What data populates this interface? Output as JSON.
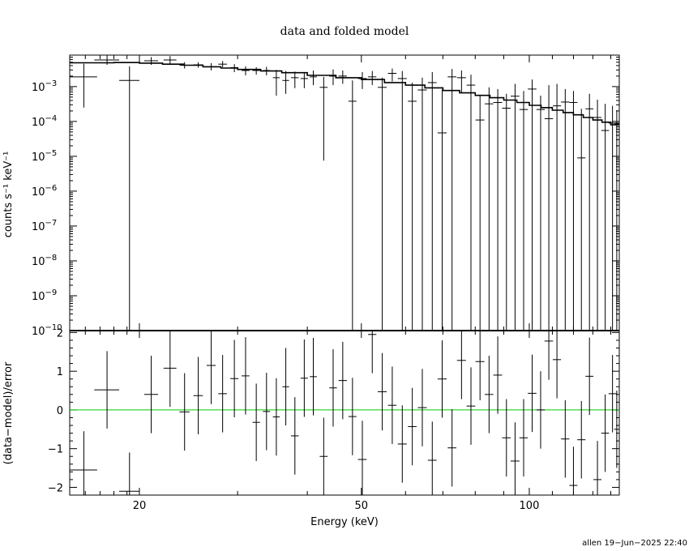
{
  "chart_data": [
    {
      "type": "scatter",
      "panel": "top",
      "title": "data and folded model",
      "xlabel": "Energy (keV)",
      "ylabel": "counts s⁻¹ keV⁻¹",
      "x_scale": "log",
      "y_scale": "log",
      "xlim": [
        15,
        145
      ],
      "ylim": [
        1e-10,
        0.008
      ],
      "x_ticks": [
        20,
        50,
        100
      ],
      "y_ticks": [
        {
          "value": 1e-10,
          "base": "10",
          "exp": "−10"
        },
        {
          "value": 1e-09,
          "base": "10",
          "exp": "−9"
        },
        {
          "value": 1e-08,
          "base": "10",
          "exp": "−8"
        },
        {
          "value": 1e-07,
          "base": "10",
          "exp": "−7"
        },
        {
          "value": 1e-06,
          "base": "10",
          "exp": "−6"
        },
        {
          "value": 1e-05,
          "base": "10",
          "exp": "−5"
        },
        {
          "value": 0.0001,
          "base": "10",
          "exp": "−4"
        },
        {
          "value": 0.001,
          "base": "10",
          "exp": "−3"
        }
      ],
      "series": [
        {
          "kind": "data",
          "color": "#000000",
          "points": [
            {
              "x": 15.9,
              "xerr": 0.9,
              "y": 0.0019,
              "ylo": 0.00025,
              "yhi": 0.0045
            },
            {
              "x": 17.5,
              "xerr": 0.9,
              "y": 0.0058,
              "ylo": 0.0042,
              "yhi": 0.0079
            },
            {
              "x": 19.2,
              "xerr": 0.8,
              "y": 0.0015,
              "ylo": 1e-10,
              "yhi": 0.0038
            },
            {
              "x": 21.0,
              "xerr": 0.6,
              "y": 0.0055,
              "ylo": 0.0042,
              "yhi": 0.007
            },
            {
              "x": 22.7,
              "xerr": 0.6,
              "y": 0.0058,
              "ylo": 0.0045,
              "yhi": 0.0075
            },
            {
              "x": 24.1,
              "xerr": 0.5,
              "y": 0.0041,
              "ylo": 0.0033,
              "yhi": 0.005
            },
            {
              "x": 25.5,
              "xerr": 0.5,
              "y": 0.0042,
              "ylo": 0.0035,
              "yhi": 0.005
            },
            {
              "x": 26.9,
              "xerr": 0.5,
              "y": 0.0037,
              "ylo": 0.0029,
              "yhi": 0.0047
            },
            {
              "x": 28.2,
              "xerr": 0.5,
              "y": 0.0044,
              "ylo": 0.0036,
              "yhi": 0.0054
            },
            {
              "x": 29.6,
              "xerr": 0.5,
              "y": 0.0035,
              "ylo": 0.0026,
              "yhi": 0.0044
            },
            {
              "x": 31.0,
              "xerr": 0.5,
              "y": 0.0029,
              "ylo": 0.0021,
              "yhi": 0.0038
            },
            {
              "x": 32.4,
              "xerr": 0.5,
              "y": 0.0029,
              "ylo": 0.0022,
              "yhi": 0.0036
            },
            {
              "x": 33.8,
              "xerr": 0.5,
              "y": 0.0029,
              "ylo": 0.0021,
              "yhi": 0.0037
            },
            {
              "x": 35.2,
              "xerr": 0.5,
              "y": 0.0018,
              "ylo": 0.00055,
              "yhi": 0.003
            },
            {
              "x": 36.6,
              "xerr": 0.5,
              "y": 0.0015,
              "ylo": 0.00062,
              "yhi": 0.0028
            },
            {
              "x": 38.0,
              "xerr": 0.6,
              "y": 0.0018,
              "ylo": 0.0009,
              "yhi": 0.0027
            },
            {
              "x": 39.5,
              "xerr": 0.6,
              "y": 0.0017,
              "ylo": 0.0009,
              "yhi": 0.0026
            },
            {
              "x": 41.0,
              "xerr": 0.6,
              "y": 0.0019,
              "ylo": 0.0011,
              "yhi": 0.0029
            },
            {
              "x": 42.8,
              "xerr": 0.7,
              "y": 0.00095,
              "ylo": 7.5e-06,
              "yhi": 0.0019
            },
            {
              "x": 44.5,
              "xerr": 0.7,
              "y": 0.002,
              "ylo": 0.0011,
              "yhi": 0.0031
            },
            {
              "x": 46.3,
              "xerr": 0.8,
              "y": 0.002,
              "ylo": 0.0012,
              "yhi": 0.0029
            },
            {
              "x": 48.2,
              "xerr": 0.8,
              "y": 0.00038,
              "ylo": 1e-10,
              "yhi": 0.0015
            },
            {
              "x": 50.2,
              "xerr": 0.9,
              "y": 0.0017,
              "ylo": 0.00085,
              "yhi": 0.0026
            },
            {
              "x": 52.3,
              "xerr": 0.9,
              "y": 0.0019,
              "ylo": 0.0011,
              "yhi": 0.0028
            },
            {
              "x": 54.5,
              "xerr": 1.0,
              "y": 0.00095,
              "ylo": 1e-10,
              "yhi": 0.0018
            },
            {
              "x": 56.8,
              "xerr": 1.0,
              "y": 0.0024,
              "ylo": 0.0014,
              "yhi": 0.0033
            },
            {
              "x": 59.2,
              "xerr": 1.1,
              "y": 0.0017,
              "ylo": 1e-10,
              "yhi": 0.0028
            },
            {
              "x": 61.7,
              "xerr": 1.1,
              "y": 0.00038,
              "ylo": 1e-10,
              "yhi": 0.0013
            },
            {
              "x": 64.3,
              "xerr": 1.2,
              "y": 0.0008,
              "ylo": 1e-10,
              "yhi": 0.0018
            },
            {
              "x": 67.0,
              "xerr": 1.2,
              "y": 0.0013,
              "ylo": 1e-10,
              "yhi": 0.0026
            },
            {
              "x": 69.8,
              "xerr": 1.3,
              "y": 4.7e-05,
              "ylo": 1e-10,
              "yhi": 0.00082
            },
            {
              "x": 72.7,
              "xerr": 1.3,
              "y": 0.0019,
              "ylo": 1e-10,
              "yhi": 0.0032
            },
            {
              "x": 75.6,
              "xerr": 1.4,
              "y": 0.0018,
              "ylo": 0.00065,
              "yhi": 0.0029
            },
            {
              "x": 78.6,
              "xerr": 1.4,
              "y": 0.0011,
              "ylo": 1e-10,
              "yhi": 0.0022
            },
            {
              "x": 81.6,
              "xerr": 1.5,
              "y": 0.00011,
              "ylo": 1e-10,
              "yhi": 0.00055
            },
            {
              "x": 84.7,
              "xerr": 1.5,
              "y": 0.00032,
              "ylo": 1e-10,
              "yhi": 0.00095
            },
            {
              "x": 87.8,
              "xerr": 1.6,
              "y": 0.00035,
              "ylo": 1e-10,
              "yhi": 0.00085
            },
            {
              "x": 91.0,
              "xerr": 1.6,
              "y": 0.00024,
              "ylo": 1e-10,
              "yhi": 0.00062
            },
            {
              "x": 94.3,
              "xerr": 1.7,
              "y": 0.00053,
              "ylo": 1e-10,
              "yhi": 0.0012
            },
            {
              "x": 97.7,
              "xerr": 1.7,
              "y": 0.00022,
              "ylo": 1e-10,
              "yhi": 0.00075
            },
            {
              "x": 101.2,
              "xerr": 1.8,
              "y": 0.00085,
              "ylo": 1e-10,
              "yhi": 0.0016
            },
            {
              "x": 104.8,
              "xerr": 1.8,
              "y": 0.00022,
              "ylo": 1e-10,
              "yhi": 0.00055
            },
            {
              "x": 108.4,
              "xerr": 1.9,
              "y": 0.00012,
              "ylo": 1e-10,
              "yhi": 0.0011
            },
            {
              "x": 112.1,
              "xerr": 1.9,
              "y": 0.00028,
              "ylo": 1e-10,
              "yhi": 0.0012
            },
            {
              "x": 116.0,
              "xerr": 2.0,
              "y": 0.00036,
              "ylo": 1e-10,
              "yhi": 0.00085
            },
            {
              "x": 120.0,
              "xerr": 2.0,
              "y": 0.00035,
              "ylo": 1e-10,
              "yhi": 0.00075
            },
            {
              "x": 124.0,
              "xerr": 2.1,
              "y": 9e-06,
              "ylo": 1e-10,
              "yhi": 0.00023
            },
            {
              "x": 128.2,
              "xerr": 2.1,
              "y": 0.00023,
              "ylo": 1e-10,
              "yhi": 0.00062
            },
            {
              "x": 132.5,
              "xerr": 2.2,
              "y": 0.00013,
              "ylo": 1e-10,
              "yhi": 0.00042
            },
            {
              "x": 136.8,
              "xerr": 2.2,
              "y": 5.5e-05,
              "ylo": 1e-10,
              "yhi": 0.00032
            },
            {
              "x": 141.0,
              "xerr": 2.3,
              "y": 9e-05,
              "ylo": 1e-10,
              "yhi": 0.00028
            },
            {
              "x": 143.5,
              "xerr": 1.5,
              "y": 8.5e-05,
              "ylo": 1e-10,
              "yhi": 0.00021
            }
          ]
        },
        {
          "kind": "model",
          "color": "#000000",
          "x": [
            15,
            18,
            20,
            22,
            24,
            26,
            28,
            30,
            33,
            36,
            40,
            45,
            50,
            55,
            60,
            65,
            70,
            75,
            80,
            85,
            90,
            95,
            100,
            105,
            110,
            115,
            120,
            125,
            130,
            135,
            140,
            145
          ],
          "y": [
            0.0048,
            0.0049,
            0.0047,
            0.0044,
            0.0041,
            0.0037,
            0.0034,
            0.0031,
            0.0028,
            0.0025,
            0.0021,
            0.0018,
            0.0016,
            0.0013,
            0.0011,
            0.00092,
            0.00077,
            0.00066,
            0.00056,
            0.00048,
            0.00041,
            0.00035,
            0.00029,
            0.00025,
            0.00021,
            0.00018,
            0.000155,
            0.00013,
            0.00011,
            9.5e-05,
            8e-05,
            7e-05
          ]
        }
      ]
    },
    {
      "type": "scatter",
      "panel": "bottom",
      "xlabel": "Energy (keV)",
      "ylabel": "(data−model)/error",
      "x_scale": "log",
      "xlim": [
        15,
        145
      ],
      "ylim": [
        -2.2,
        2.05
      ],
      "x_ticks": [
        20,
        50,
        100
      ],
      "y_ticks": [
        -2,
        -1,
        0,
        1,
        2
      ],
      "zero_line_color": "#00cc00",
      "series": [
        {
          "kind": "residuals",
          "color": "#000000",
          "points": [
            {
              "x": 15.9,
              "xerr": 0.9,
              "y": -1.55,
              "err": 1.0
            },
            {
              "x": 17.5,
              "xerr": 0.9,
              "y": 0.52,
              "err": 1.0
            },
            {
              "x": 19.2,
              "xerr": 0.8,
              "y": -2.1,
              "err": 1.0
            },
            {
              "x": 21.0,
              "xerr": 0.6,
              "y": 0.4,
              "err": 1.0
            },
            {
              "x": 22.7,
              "xerr": 0.6,
              "y": 1.08,
              "err": 1.0
            },
            {
              "x": 24.1,
              "xerr": 0.5,
              "y": -0.05,
              "err": 1.0
            },
            {
              "x": 25.5,
              "xerr": 0.5,
              "y": 0.37,
              "err": 1.0
            },
            {
              "x": 26.9,
              "xerr": 0.5,
              "y": 1.15,
              "err": 1.0
            },
            {
              "x": 28.2,
              "xerr": 0.5,
              "y": 0.42,
              "err": 1.0
            },
            {
              "x": 29.6,
              "xerr": 0.5,
              "y": 0.81,
              "err": 1.0
            },
            {
              "x": 31.0,
              "xerr": 0.5,
              "y": 0.88,
              "err": 1.0
            },
            {
              "x": 32.4,
              "xerr": 0.5,
              "y": -0.32,
              "err": 1.0
            },
            {
              "x": 33.8,
              "xerr": 0.5,
              "y": -0.04,
              "err": 1.0
            },
            {
              "x": 35.2,
              "xerr": 0.5,
              "y": -0.18,
              "err": 1.0
            },
            {
              "x": 36.6,
              "xerr": 0.5,
              "y": 0.6,
              "err": 1.0
            },
            {
              "x": 38.0,
              "xerr": 0.6,
              "y": -0.67,
              "err": 1.0
            },
            {
              "x": 39.5,
              "xerr": 0.6,
              "y": 0.82,
              "err": 1.0
            },
            {
              "x": 41.0,
              "xerr": 0.6,
              "y": 0.86,
              "err": 1.0
            },
            {
              "x": 42.8,
              "xerr": 0.7,
              "y": -1.2,
              "err": 1.0
            },
            {
              "x": 44.5,
              "xerr": 0.7,
              "y": 0.57,
              "err": 1.0
            },
            {
              "x": 46.3,
              "xerr": 0.8,
              "y": 0.76,
              "err": 1.0
            },
            {
              "x": 48.2,
              "xerr": 0.8,
              "y": -0.17,
              "err": 1.0
            },
            {
              "x": 50.2,
              "xerr": 0.9,
              "y": -1.28,
              "err": 1.0
            },
            {
              "x": 52.3,
              "xerr": 0.9,
              "y": 1.95,
              "err": 1.0
            },
            {
              "x": 54.5,
              "xerr": 1.0,
              "y": 0.47,
              "err": 1.0
            },
            {
              "x": 56.8,
              "xerr": 1.0,
              "y": 0.12,
              "err": 1.0
            },
            {
              "x": 59.2,
              "xerr": 1.1,
              "y": -0.88,
              "err": 1.0
            },
            {
              "x": 61.7,
              "xerr": 1.1,
              "y": -0.43,
              "err": 1.0
            },
            {
              "x": 64.3,
              "xerr": 1.2,
              "y": 0.06,
              "err": 1.0
            },
            {
              "x": 67.0,
              "xerr": 1.2,
              "y": -1.3,
              "err": 1.0
            },
            {
              "x": 69.8,
              "xerr": 1.3,
              "y": 0.8,
              "err": 1.0
            },
            {
              "x": 72.7,
              "xerr": 1.3,
              "y": -0.98,
              "err": 1.0
            },
            {
              "x": 75.6,
              "xerr": 1.4,
              "y": 1.28,
              "err": 1.0
            },
            {
              "x": 78.6,
              "xerr": 1.4,
              "y": 0.1,
              "err": 1.0
            },
            {
              "x": 81.6,
              "xerr": 1.5,
              "y": 1.25,
              "err": 1.0
            },
            {
              "x": 84.7,
              "xerr": 1.5,
              "y": 0.4,
              "err": 1.0
            },
            {
              "x": 87.8,
              "xerr": 1.6,
              "y": 0.9,
              "err": 1.0
            },
            {
              "x": 91.0,
              "xerr": 1.6,
              "y": -0.72,
              "err": 1.0
            },
            {
              "x": 94.3,
              "xerr": 1.7,
              "y": -1.32,
              "err": 1.0
            },
            {
              "x": 97.7,
              "xerr": 1.7,
              "y": -0.72,
              "err": 1.0
            },
            {
              "x": 101.2,
              "xerr": 1.8,
              "y": 0.43,
              "err": 1.0
            },
            {
              "x": 104.8,
              "xerr": 1.8,
              "y": 0.0,
              "err": 1.0
            },
            {
              "x": 108.4,
              "xerr": 1.9,
              "y": 1.78,
              "err": 1.0
            },
            {
              "x": 112.1,
              "xerr": 1.9,
              "y": 1.3,
              "err": 1.0
            },
            {
              "x": 116.0,
              "xerr": 2.0,
              "y": -0.75,
              "err": 1.0
            },
            {
              "x": 120.0,
              "xerr": 2.0,
              "y": -1.95,
              "err": 1.0
            },
            {
              "x": 124.0,
              "xerr": 2.1,
              "y": -0.77,
              "err": 1.0
            },
            {
              "x": 128.2,
              "xerr": 2.1,
              "y": 0.87,
              "err": 1.0
            },
            {
              "x": 132.5,
              "xerr": 2.2,
              "y": -1.8,
              "err": 1.0
            },
            {
              "x": 136.8,
              "xerr": 2.2,
              "y": -0.6,
              "err": 1.0
            },
            {
              "x": 141.0,
              "xerr": 2.3,
              "y": 0.42,
              "err": 1.0
            },
            {
              "x": 143.5,
              "xerr": 1.5,
              "y": -0.5,
              "err": 1.0
            }
          ]
        }
      ]
    }
  ],
  "footer": "allen 19−Jun−2025 22:40"
}
